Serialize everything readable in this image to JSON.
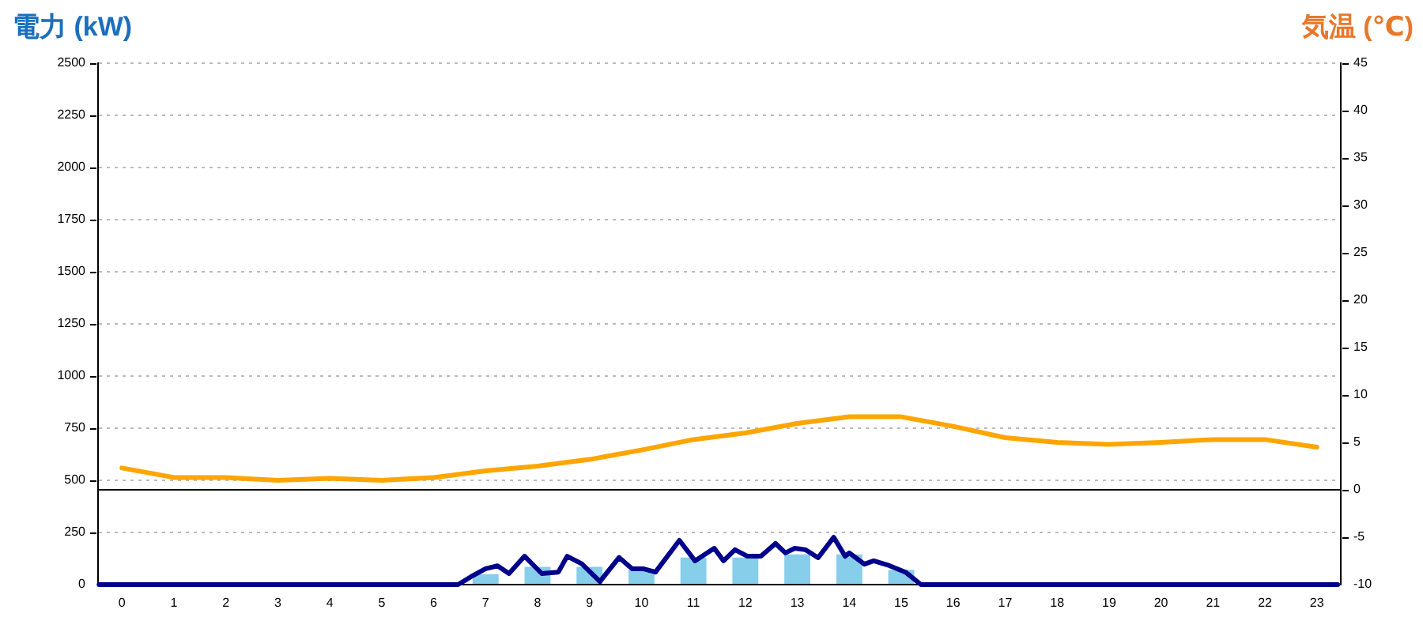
{
  "chart_data": {
    "type": "bar",
    "ylabel": "電力 (kW)",
    "y2label": "気温 (℃)",
    "xlim": [
      -0.46,
      23.46
    ],
    "xticks": [
      0,
      1,
      2,
      3,
      4,
      5,
      6,
      7,
      8,
      9,
      10,
      11,
      12,
      13,
      14,
      15,
      16,
      17,
      18,
      19,
      20,
      21,
      22,
      23
    ],
    "ylim": [
      0,
      2500
    ],
    "yticks": [
      0,
      250,
      500,
      750,
      1000,
      1250,
      1500,
      1750,
      2000,
      2250,
      2500
    ],
    "y2lim": [
      -10,
      45
    ],
    "y2ticks": [
      -10,
      -5,
      0,
      5,
      10,
      15,
      20,
      25,
      30,
      35,
      40,
      45
    ],
    "grid": "y",
    "legend": false,
    "marker": "none",
    "ref_lines": [
      {
        "axis": "y2",
        "value": 0,
        "color": "#000000"
      }
    ],
    "series": [
      {
        "color": "#87ceeb",
        "x": [
          0,
          1,
          2,
          3,
          4,
          5,
          6,
          7,
          8,
          9,
          10,
          11,
          12,
          13,
          14,
          15,
          16,
          17,
          18,
          19,
          20,
          21,
          22,
          23
        ],
        "values": [
          0,
          0,
          0,
          0,
          0,
          0,
          0,
          50,
          85,
          85,
          70,
          130,
          130,
          145,
          145,
          70,
          0,
          0,
          0,
          0,
          0,
          0,
          0,
          0
        ]
      },
      {
        "type": "line",
        "color": "#00008b",
        "x": [
          -0.44,
          6.47,
          6.72,
          7.0,
          7.23,
          7.45,
          7.75,
          8.08,
          8.4,
          8.57,
          8.85,
          9.2,
          9.57,
          9.82,
          10.03,
          10.27,
          10.73,
          11.03,
          11.4,
          11.58,
          11.8,
          12.04,
          12.3,
          12.58,
          12.77,
          12.95,
          13.16,
          13.4,
          13.7,
          13.92,
          14.0,
          14.29,
          14.47,
          14.77,
          15.08,
          15.38,
          23.4
        ],
        "values": [
          0,
          0,
          38,
          76,
          90,
          53,
          136,
          53,
          60,
          136,
          100,
          15,
          130,
          76,
          76,
          60,
          212,
          114,
          174,
          114,
          167,
          136,
          136,
          197,
          152,
          174,
          167,
          129,
          227,
          136,
          152,
          98,
          114,
          91,
          60,
          0,
          0
        ]
      },
      {
        "type": "line",
        "axis": "y2",
        "color": "#ffa500",
        "x": [
          0,
          1,
          2,
          3,
          4,
          5,
          6,
          7,
          8,
          9,
          10,
          11,
          12,
          13,
          14,
          15,
          16,
          17,
          18,
          19,
          20,
          21,
          22,
          23
        ],
        "values": [
          2.3,
          1.3,
          1.3,
          1.0,
          1.2,
          1.0,
          1.3,
          2.0,
          2.5,
          3.2,
          4.2,
          5.3,
          6.0,
          7.0,
          7.7,
          7.7,
          6.7,
          5.5,
          5.0,
          4.8,
          5.0,
          5.3,
          5.3,
          4.5
        ]
      }
    ]
  }
}
